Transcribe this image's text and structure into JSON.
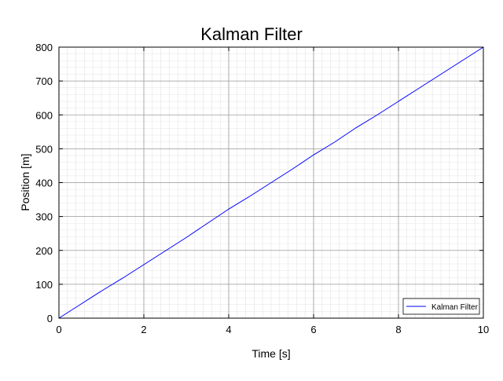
{
  "chart_data": {
    "type": "line",
    "title": "Kalman Filter",
    "xlabel": "Time [s]",
    "ylabel": "Position [m]",
    "xlim": [
      0,
      10
    ],
    "ylim": [
      0,
      800
    ],
    "xticks": [
      0,
      2,
      4,
      6,
      8,
      10
    ],
    "yticks": [
      0,
      100,
      200,
      300,
      400,
      500,
      600,
      700,
      800
    ],
    "x_tick_labels": [
      "0",
      "2",
      "4",
      "6",
      "8",
      "10"
    ],
    "y_tick_labels": [
      "0",
      "100",
      "200",
      "300",
      "400",
      "500",
      "600",
      "700",
      "800"
    ],
    "grid": true,
    "minor_grid": true,
    "legend_position": "bottom-right",
    "series": [
      {
        "name": "Kalman Filter",
        "color": "#0000ff",
        "x": [
          0,
          0.5,
          1,
          1.5,
          2,
          2.5,
          3,
          3.5,
          4,
          4.5,
          5,
          5.5,
          6,
          6.5,
          7,
          7.5,
          8,
          8.5,
          9,
          9.5,
          10
        ],
        "y": [
          0,
          40,
          80,
          118,
          158,
          198,
          238,
          280,
          322,
          360,
          400,
          440,
          482,
          520,
          562,
          600,
          640,
          680,
          720,
          760,
          800
        ]
      }
    ]
  }
}
